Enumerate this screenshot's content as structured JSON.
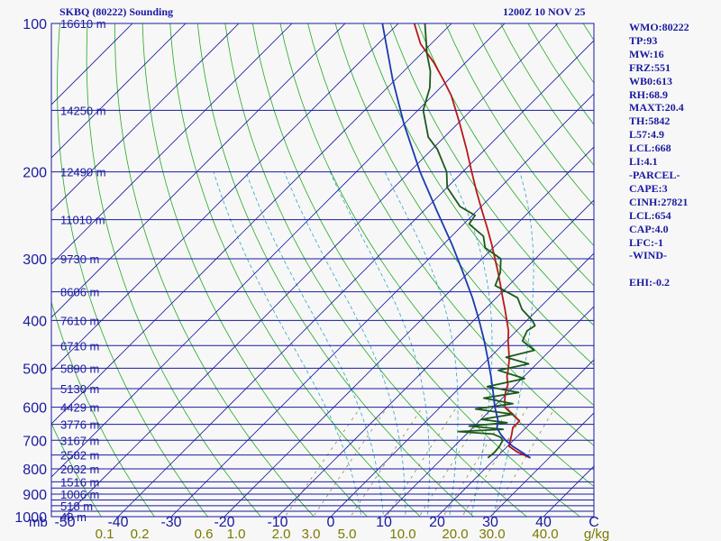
{
  "header": {
    "station": "SKBQ (80222) Sounding",
    "valid_time": "1200Z 10 NOV 25"
  },
  "indices": [
    "WMO:80222",
    "TP:93",
    "MW:16",
    "FRZ:551",
    "WB0:613",
    "RH:68.9",
    "MAXT:20.4",
    "TH:5842",
    "L57:4.9",
    "LCL:668",
    "LI:4.1",
    "-PARCEL-",
    "CAPE:3",
    "CINH:27821",
    "LCL:654",
    "CAP:4.0",
    "LFC:-1",
    "-WIND-",
    "",
    "EHI:-0.2"
  ],
  "colors": {
    "isobar": "#1a1aa0",
    "isotherm": "#1a1aa0",
    "dry_adiabat": "#22aa22",
    "moist_adiabat": "#2aa6c8",
    "mixing_ratio": "#7a7a3a",
    "temperature": "#b81818",
    "dewpoint": "#1a5a1a",
    "parcel": "#1a3ab0",
    "mixing_ratio_labels": "#7a7a00"
  },
  "chart_data": {
    "type": "line",
    "chart_kind": "skew-t log-p sounding",
    "title": "SKBQ (80222) Sounding",
    "xlabel": "°C",
    "ylabel": "mb",
    "ylim": [
      1000,
      100
    ],
    "xlim": [
      -50,
      50
    ],
    "pressure_levels": [
      1000,
      900,
      800,
      700,
      600,
      500,
      400,
      300,
      200,
      100
    ],
    "isobar_levels": [
      1000,
      975,
      950,
      925,
      900,
      875,
      850,
      800,
      750,
      700,
      650,
      600,
      550,
      500,
      450,
      400,
      350,
      300,
      250,
      200,
      150,
      100
    ],
    "temperature_ticks": [
      "-50",
      "-40",
      "-30",
      "-20",
      "-10",
      "0",
      "10",
      "20",
      "30",
      "40",
      "C"
    ],
    "temperature_tick_values": [
      -50,
      -40,
      -30,
      -20,
      -10,
      0,
      10,
      20,
      30,
      40
    ],
    "height_labels": [
      {
        "p": 100,
        "label": "16610 m"
      },
      {
        "p": 150,
        "label": "14250 m"
      },
      {
        "p": 200,
        "label": "12490 m"
      },
      {
        "p": 250,
        "label": "11010 m"
      },
      {
        "p": 300,
        "label": "9730 m"
      },
      {
        "p": 350,
        "label": "8606 m"
      },
      {
        "p": 400,
        "label": "7610 m"
      },
      {
        "p": 450,
        "label": "6710 m"
      },
      {
        "p": 500,
        "label": "5890 m"
      },
      {
        "p": 550,
        "label": "5130 m"
      },
      {
        "p": 600,
        "label": "4429 m"
      },
      {
        "p": 650,
        "label": "3776 m"
      },
      {
        "p": 700,
        "label": "3167 m"
      },
      {
        "p": 750,
        "label": "2582 m"
      },
      {
        "p": 800,
        "label": "2032 m"
      },
      {
        "p": 850,
        "label": "1516 m"
      },
      {
        "p": 900,
        "label": "1006 m"
      },
      {
        "p": 950,
        "label": "518 m"
      },
      {
        "p": 1000,
        "label": "48 m"
      }
    ],
    "mixing_ratio_ticks": [
      "0.1",
      "0.2",
      "0.6",
      "1.0",
      "2.0",
      "3.0",
      "5.0",
      "10.0",
      "20.0",
      "30.0",
      "40.0",
      "g/kg"
    ],
    "mixing_ratio_values": [
      0.1,
      0.2,
      0.6,
      1.0,
      2.0,
      3.0,
      5.0,
      10.0,
      20.0,
      30.0,
      40.0
    ],
    "series": [
      {
        "name": "Temperature",
        "points": [
          {
            "p": 760,
            "t": 26.5
          },
          {
            "p": 740,
            "t": 23.0
          },
          {
            "p": 720,
            "t": 20.3
          },
          {
            "p": 700,
            "t": 19.4
          },
          {
            "p": 680,
            "t": 18.5
          },
          {
            "p": 660,
            "t": 17.5
          },
          {
            "p": 640,
            "t": 17.5
          },
          {
            "p": 620,
            "t": 15.0
          },
          {
            "p": 600,
            "t": 12.2
          },
          {
            "p": 580,
            "t": 10.8
          },
          {
            "p": 560,
            "t": 9.5
          },
          {
            "p": 540,
            "t": 8.5
          },
          {
            "p": 520,
            "t": 6.8
          },
          {
            "p": 500,
            "t": 5.5
          },
          {
            "p": 480,
            "t": 4.0
          },
          {
            "p": 460,
            "t": 2.2
          },
          {
            "p": 440,
            "t": 0.3
          },
          {
            "p": 420,
            "t": -1.5
          },
          {
            "p": 400,
            "t": -3.8
          },
          {
            "p": 380,
            "t": -6.2
          },
          {
            "p": 360,
            "t": -8.8
          },
          {
            "p": 340,
            "t": -11.5
          },
          {
            "p": 320,
            "t": -14.4
          },
          {
            "p": 300,
            "t": -17.6
          },
          {
            "p": 280,
            "t": -21.0
          },
          {
            "p": 260,
            "t": -24.8
          },
          {
            "p": 240,
            "t": -29.0
          },
          {
            "p": 220,
            "t": -33.5
          },
          {
            "p": 200,
            "t": -38.3
          },
          {
            "p": 180,
            "t": -43.5
          },
          {
            "p": 160,
            "t": -49.5
          },
          {
            "p": 140,
            "t": -56.5
          },
          {
            "p": 130,
            "t": -61.0
          },
          {
            "p": 120,
            "t": -66.0
          },
          {
            "p": 110,
            "t": -72.0
          },
          {
            "p": 100,
            "t": -77.0
          }
        ]
      },
      {
        "name": "Dewpoint",
        "points": [
          {
            "p": 760,
            "t": 18.5
          },
          {
            "p": 740,
            "t": 18.7
          },
          {
            "p": 720,
            "t": 18.5
          },
          {
            "p": 700,
            "t": 18.0
          },
          {
            "p": 690,
            "t": 17.0
          },
          {
            "p": 680,
            "t": 15.0
          },
          {
            "p": 672,
            "t": 8.0
          },
          {
            "p": 665,
            "t": 16.0
          },
          {
            "p": 655,
            "t": 9.0
          },
          {
            "p": 645,
            "t": 15.5
          },
          {
            "p": 635,
            "t": 10.0
          },
          {
            "p": 620,
            "t": 15.0
          },
          {
            "p": 605,
            "t": 7.0
          },
          {
            "p": 590,
            "t": 13.0
          },
          {
            "p": 575,
            "t": 6.5
          },
          {
            "p": 560,
            "t": 12.0
          },
          {
            "p": 545,
            "t": 5.0
          },
          {
            "p": 525,
            "t": 10.5
          },
          {
            "p": 505,
            "t": 4.0
          },
          {
            "p": 490,
            "t": 8.5
          },
          {
            "p": 475,
            "t": 3.0
          },
          {
            "p": 460,
            "t": 7.0
          },
          {
            "p": 440,
            "t": 3.0
          },
          {
            "p": 420,
            "t": 2.0
          },
          {
            "p": 410,
            "t": 2.5
          },
          {
            "p": 400,
            "t": 1.0
          },
          {
            "p": 380,
            "t": -3.0
          },
          {
            "p": 360,
            "t": -6.0
          },
          {
            "p": 340,
            "t": -12.5
          },
          {
            "p": 320,
            "t": -14.0
          },
          {
            "p": 300,
            "t": -16.5
          },
          {
            "p": 285,
            "t": -21.5
          },
          {
            "p": 270,
            "t": -24.0
          },
          {
            "p": 255,
            "t": -29.0
          },
          {
            "p": 245,
            "t": -29.5
          },
          {
            "p": 235,
            "t": -34.0
          },
          {
            "p": 215,
            "t": -40.0
          },
          {
            "p": 200,
            "t": -43.0
          },
          {
            "p": 180,
            "t": -49.0
          },
          {
            "p": 170,
            "t": -53.0
          },
          {
            "p": 150,
            "t": -59.0
          },
          {
            "p": 135,
            "t": -62.0
          },
          {
            "p": 125,
            "t": -65.0
          },
          {
            "p": 115,
            "t": -69.0
          },
          {
            "p": 100,
            "t": -75.0
          }
        ]
      },
      {
        "name": "Parcel",
        "points": [
          {
            "p": 760,
            "t": 26.5
          },
          {
            "p": 740,
            "t": 23.8
          },
          {
            "p": 720,
            "t": 21.0
          },
          {
            "p": 700,
            "t": 18.5
          },
          {
            "p": 680,
            "t": 16.4
          },
          {
            "p": 660,
            "t": 14.5
          },
          {
            "p": 640,
            "t": 13.5
          },
          {
            "p": 600,
            "t": 10.3
          },
          {
            "p": 560,
            "t": 7.2
          },
          {
            "p": 520,
            "t": 3.8
          },
          {
            "p": 480,
            "t": 0.0
          },
          {
            "p": 440,
            "t": -4.2
          },
          {
            "p": 400,
            "t": -9.0
          },
          {
            "p": 360,
            "t": -14.5
          },
          {
            "p": 320,
            "t": -21.0
          },
          {
            "p": 280,
            "t": -28.5
          },
          {
            "p": 240,
            "t": -37.5
          },
          {
            "p": 200,
            "t": -48.0
          },
          {
            "p": 160,
            "t": -60.0
          },
          {
            "p": 130,
            "t": -70.5
          },
          {
            "p": 100,
            "t": -83.0
          }
        ]
      }
    ]
  }
}
